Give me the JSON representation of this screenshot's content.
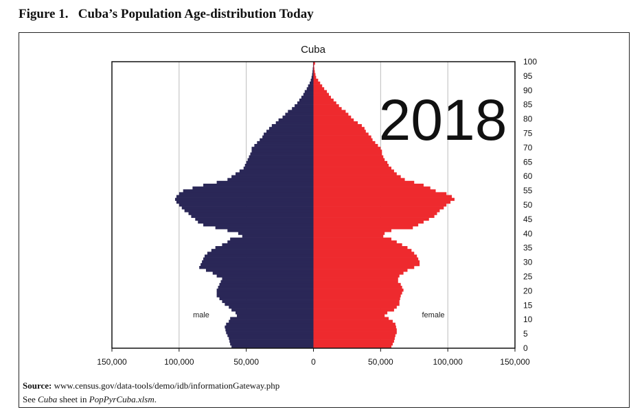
{
  "figure_title": "Figure 1.   Cuba’s Population Age-distribution Today",
  "source": {
    "label": "Source:",
    "text": " www.census.gov/data-tools/demo/idb/informationGateway.php"
  },
  "note": {
    "pre": "See ",
    "sheet": "Cuba",
    "mid": " sheet in ",
    "file": "PopPyrCuba.xlsm",
    "post": "."
  },
  "chart_data": {
    "type": "bar",
    "orientation": "horizontal population pyramid",
    "title": "Cuba",
    "annotation": "2018",
    "xlim": [
      -150000,
      150000
    ],
    "x_ticks": [
      -150000,
      -100000,
      -50000,
      0,
      50000,
      100000,
      150000
    ],
    "x_tick_labels": [
      "150,000",
      "100,000",
      "50,000",
      "0",
      "50,000",
      "100,000",
      "150,000"
    ],
    "y_ticks": [
      0,
      5,
      10,
      15,
      20,
      25,
      30,
      35,
      40,
      45,
      50,
      55,
      60,
      65,
      70,
      75,
      80,
      85,
      90,
      95,
      100
    ],
    "y_axis_position": "right",
    "grid": "vertical",
    "ages": "0-100 single years",
    "series": [
      {
        "name": "male",
        "color": "#2a2757",
        "values": [
          61000,
          62000,
          62500,
          63000,
          64000,
          65000,
          65500,
          66000,
          65000,
          63000,
          62000,
          57000,
          58000,
          61000,
          63000,
          66000,
          68000,
          70000,
          72000,
          72000,
          72000,
          71000,
          70000,
          69000,
          68000,
          72000,
          75000,
          80000,
          85000,
          84000,
          83000,
          82000,
          81000,
          79000,
          76000,
          73000,
          68000,
          64000,
          62000,
          53000,
          56000,
          64000,
          73000,
          82000,
          86000,
          88000,
          91000,
          93000,
          96000,
          98000,
          100000,
          102000,
          103000,
          102000,
          100000,
          97000,
          90000,
          82000,
          72000,
          64000,
          61000,
          58000,
          55000,
          52000,
          51000,
          50000,
          49000,
          48000,
          47000,
          46000,
          46000,
          44000,
          42000,
          40000,
          38000,
          37000,
          35000,
          33000,
          31000,
          28000,
          26000,
          23000,
          21000,
          19000,
          16000,
          14000,
          12000,
          10500,
          9000,
          7500,
          6500,
          5000,
          4000,
          2800,
          2000,
          1400,
          1000,
          700,
          500,
          300,
          300
        ]
      },
      {
        "name": "female",
        "color": "#ee2a2e",
        "values": [
          58000,
          59000,
          60000,
          60500,
          61000,
          62000,
          62000,
          61500,
          61000,
          59000,
          56000,
          53000,
          55000,
          60000,
          62000,
          64000,
          64000,
          64500,
          65000,
          66000,
          67000,
          66000,
          65000,
          63000,
          63000,
          64000,
          67000,
          70000,
          75000,
          79000,
          79000,
          78000,
          77000,
          75000,
          73000,
          70000,
          66000,
          62000,
          58000,
          52000,
          53000,
          58000,
          74000,
          78000,
          82000,
          86000,
          90000,
          92000,
          94000,
          97000,
          99000,
          102000,
          105000,
          103000,
          99000,
          91000,
          87000,
          82000,
          75000,
          68000,
          65000,
          62000,
          60000,
          58000,
          56000,
          55000,
          53000,
          52000,
          51000,
          51000,
          50000,
          48000,
          46000,
          44000,
          43000,
          41000,
          39000,
          38000,
          36000,
          33000,
          30000,
          28000,
          26000,
          24000,
          21000,
          19000,
          17000,
          15000,
          13000,
          11500,
          10000,
          8000,
          6500,
          5000,
          3500,
          2000,
          1500,
          1000,
          700,
          500,
          1200
        ]
      }
    ]
  }
}
